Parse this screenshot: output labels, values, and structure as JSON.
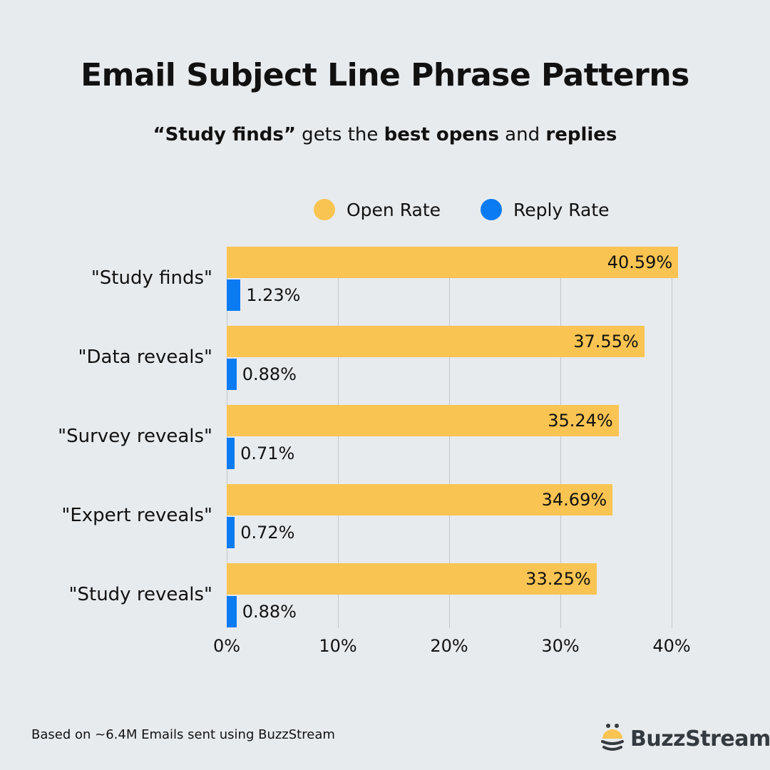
{
  "header": {
    "title": "Email Subject Line Phrase Patterns",
    "subtitle_parts": [
      {
        "text": "“Study finds”",
        "bold": true
      },
      {
        "text": " gets the ",
        "bold": false
      },
      {
        "text": "best opens",
        "bold": true
      },
      {
        "text": " and ",
        "bold": false
      },
      {
        "text": "replies",
        "bold": true
      }
    ]
  },
  "legend": [
    {
      "label": "Open Rate",
      "color": "#f9c452"
    },
    {
      "label": "Reply Rate",
      "color": "#0a7bf2"
    }
  ],
  "footer": {
    "note": "Based on ~6.4M Emails sent using BuzzStream",
    "brand": "BuzzStream"
  },
  "chart_data": {
    "type": "bar",
    "orientation": "horizontal",
    "title": "Email Subject Line Phrase Patterns",
    "subtitle": "“Study finds” gets the best opens and replies",
    "categories": [
      "\"Study finds\"",
      "\"Data reveals\"",
      "\"Survey reveals\"",
      "\"Expert reveals\"",
      "\"Study reveals\""
    ],
    "series": [
      {
        "name": "Open Rate",
        "color": "#f9c452",
        "values": [
          40.59,
          37.55,
          35.24,
          34.69,
          33.25
        ],
        "labels": [
          "40.59%",
          "37.55%",
          "35.24%",
          "34.69%",
          "33.25%"
        ]
      },
      {
        "name": "Reply Rate",
        "color": "#0a7bf2",
        "values": [
          1.23,
          0.88,
          0.71,
          0.72,
          0.88
        ],
        "labels": [
          "1.23%",
          "0.88%",
          "0.71%",
          "0.72%",
          "0.88%"
        ]
      }
    ],
    "xlabel": "",
    "ylabel": "",
    "xlim": [
      0,
      40
    ],
    "x_ticks": [
      "0%",
      "10%",
      "20%",
      "30%",
      "40%"
    ],
    "grid": "vertical",
    "legend_position": "top"
  }
}
